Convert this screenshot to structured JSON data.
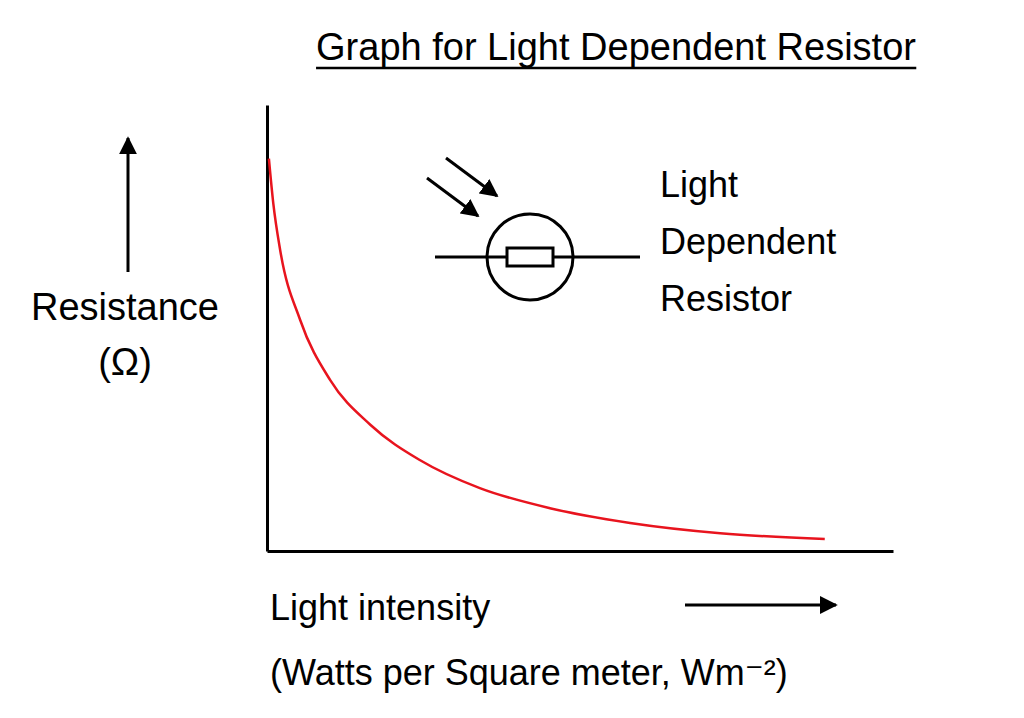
{
  "chart_data": {
    "type": "line",
    "title": "Graph for Light Dependent Resistor",
    "x_label": [
      "Light intensity",
      "(Watts per Square meter, Wm⁻²)"
    ],
    "y_label": [
      "Resistance",
      "(Ω)"
    ],
    "annotation": [
      "Light",
      "Dependent",
      "Resistor"
    ],
    "x": [
      0.3,
      1,
      2.1,
      5.3,
      10.1,
      16.5,
      24.4,
      34,
      45.2,
      58,
      72.4,
      89.1
    ],
    "values": [
      88,
      78,
      67.5,
      51.8,
      38.3,
      28.3,
      20.4,
      14.1,
      9.6,
      6.3,
      4,
      2.7
    ],
    "color": "#e8141e",
    "xlim": [
      0,
      100
    ],
    "ylim": [
      0,
      100
    ],
    "tick_labels": false,
    "grid": false
  }
}
